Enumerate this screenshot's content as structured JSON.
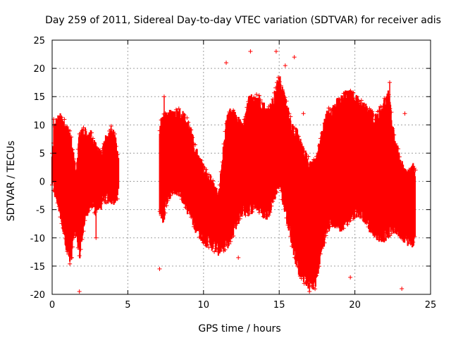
{
  "chart_data": {
    "type": "scatter",
    "title": "Day 259 of 2011, Sidereal Day-to-day VTEC variation (SDTVAR) for receiver adis",
    "xlabel": "GPS time / hours",
    "ylabel": "SDTVAR / TECUs",
    "xlim": [
      0,
      25
    ],
    "ylim": [
      -20,
      25
    ],
    "xticks": [
      0,
      5,
      10,
      15,
      20,
      25
    ],
    "yticks": [
      -20,
      -15,
      -10,
      -5,
      0,
      5,
      10,
      15,
      20,
      25
    ],
    "grid": true,
    "marker": "+",
    "color": "#ff0000",
    "envelope": {
      "x": [
        0.0,
        0.2,
        0.5,
        0.8,
        1.0,
        1.2,
        1.4,
        1.6,
        1.8,
        2.0,
        2.3,
        2.6,
        2.9,
        3.2,
        3.5,
        3.8,
        4.1,
        4.4,
        7.1,
        7.3,
        7.6,
        8.0,
        8.5,
        9.0,
        9.5,
        10.0,
        10.5,
        11.0,
        11.5,
        11.8,
        12.2,
        12.6,
        13.0,
        13.4,
        13.8,
        14.2,
        14.6,
        15.0,
        15.4,
        15.8,
        16.2,
        16.6,
        17.0,
        17.4,
        17.8,
        18.2,
        18.6,
        19.0,
        19.4,
        19.8,
        20.2,
        20.6,
        21.0,
        21.4,
        21.8,
        22.2,
        22.6,
        23.0,
        23.4,
        23.8,
        24.0
      ],
      "upper": [
        4,
        10,
        11,
        10,
        9,
        8,
        4,
        2,
        8,
        9,
        8,
        8,
        6,
        4,
        7,
        8,
        9,
        3,
        9,
        11,
        11,
        12,
        12,
        10,
        5,
        2,
        0,
        -3,
        10,
        12,
        11,
        9,
        14,
        15,
        14,
        12,
        14,
        18,
        14,
        10,
        8,
        5,
        3,
        3,
        8,
        12,
        13,
        14,
        15,
        15,
        14,
        13,
        12,
        11,
        13,
        15,
        8,
        3,
        1,
        2,
        2
      ],
      "lower": [
        0,
        -2,
        -5,
        -9,
        -12,
        -14,
        -10,
        -9,
        -13,
        -9,
        -5,
        -4,
        -5,
        -4,
        -3,
        -3,
        -3,
        -2,
        -5,
        -7,
        -3,
        -1,
        -2,
        -5,
        -8,
        -10,
        -11,
        -12,
        -11,
        -10,
        -7,
        -5,
        -5,
        -4,
        -5,
        -6,
        -3,
        0,
        -5,
        -10,
        -15,
        -17,
        -18,
        -18,
        -12,
        -8,
        -7,
        -8,
        -7,
        -6,
        -5,
        -6,
        -8,
        -9,
        -10,
        -9,
        -8,
        -9,
        -10,
        -11,
        -9
      ]
    },
    "gaps": [
      [
        4.4,
        7.1
      ]
    ],
    "spikes": [
      {
        "x": 1.8,
        "y": -19.5
      },
      {
        "x": 13.1,
        "y": 23
      },
      {
        "x": 14.8,
        "y": 23
      },
      {
        "x": 16.0,
        "y": 22
      },
      {
        "x": 19.7,
        "y": -17
      },
      {
        "x": 17.0,
        "y": -19.5
      },
      {
        "x": 23.1,
        "y": -19
      },
      {
        "x": 7.1,
        "y": -15.5
      },
      {
        "x": 11.5,
        "y": 21
      },
      {
        "x": 12.3,
        "y": -13.5
      },
      {
        "x": 22.3,
        "y": 17.5
      },
      {
        "x": 3.9,
        "y": 9.8
      },
      {
        "x": 7.4,
        "y": 15
      },
      {
        "x": 15.4,
        "y": 20.5
      },
      {
        "x": 2.9,
        "y": -10
      },
      {
        "x": 23.3,
        "y": 12
      },
      {
        "x": 16.6,
        "y": 12
      },
      {
        "x": 0.1,
        "y": 11
      },
      {
        "x": 1.3,
        "y": -13.5
      },
      {
        "x": 24.0,
        "y": 2
      }
    ]
  }
}
